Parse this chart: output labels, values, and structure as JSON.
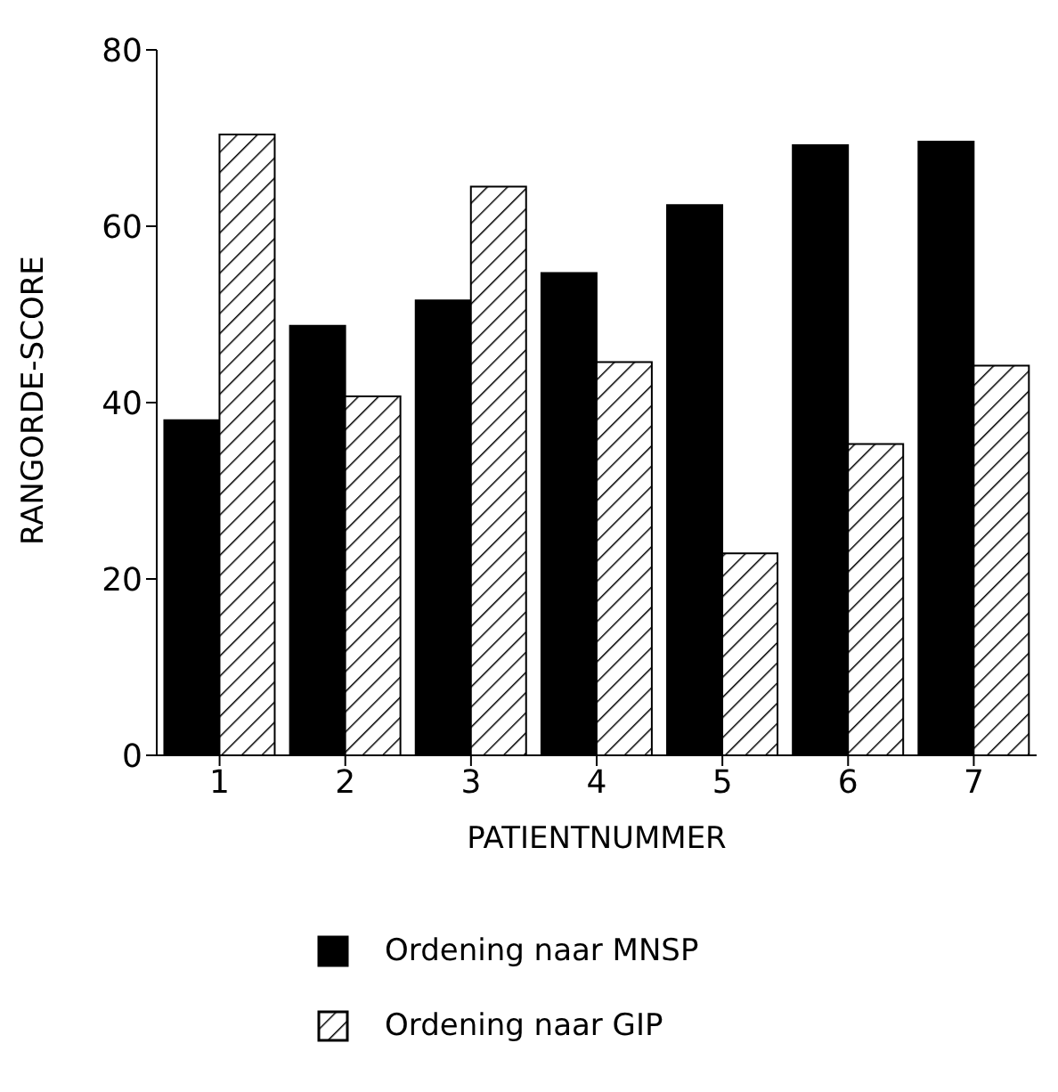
{
  "chart_data": {
    "type": "bar",
    "xlabel": "PATIENTNUMMER",
    "ylabel": "RANGORDE-SCORE",
    "categories": [
      "1",
      "2",
      "3",
      "4",
      "5",
      "6",
      "7"
    ],
    "series": [
      {
        "name": "Ordening naar MNSP",
        "color": "#000000",
        "values": [
          38,
          48.7,
          51.6,
          54.7,
          62.4,
          69.2,
          69.6
        ]
      },
      {
        "name": "Ordening naar GIP",
        "color": "#000000",
        "values": [
          70.4,
          40.7,
          64.5,
          44.6,
          22.9,
          35.3,
          44.2
        ]
      }
    ],
    "ylim": [
      0,
      80
    ],
    "yticks": [
      0,
      20,
      40,
      60,
      80
    ],
    "grid": false,
    "legend": "bottom"
  }
}
